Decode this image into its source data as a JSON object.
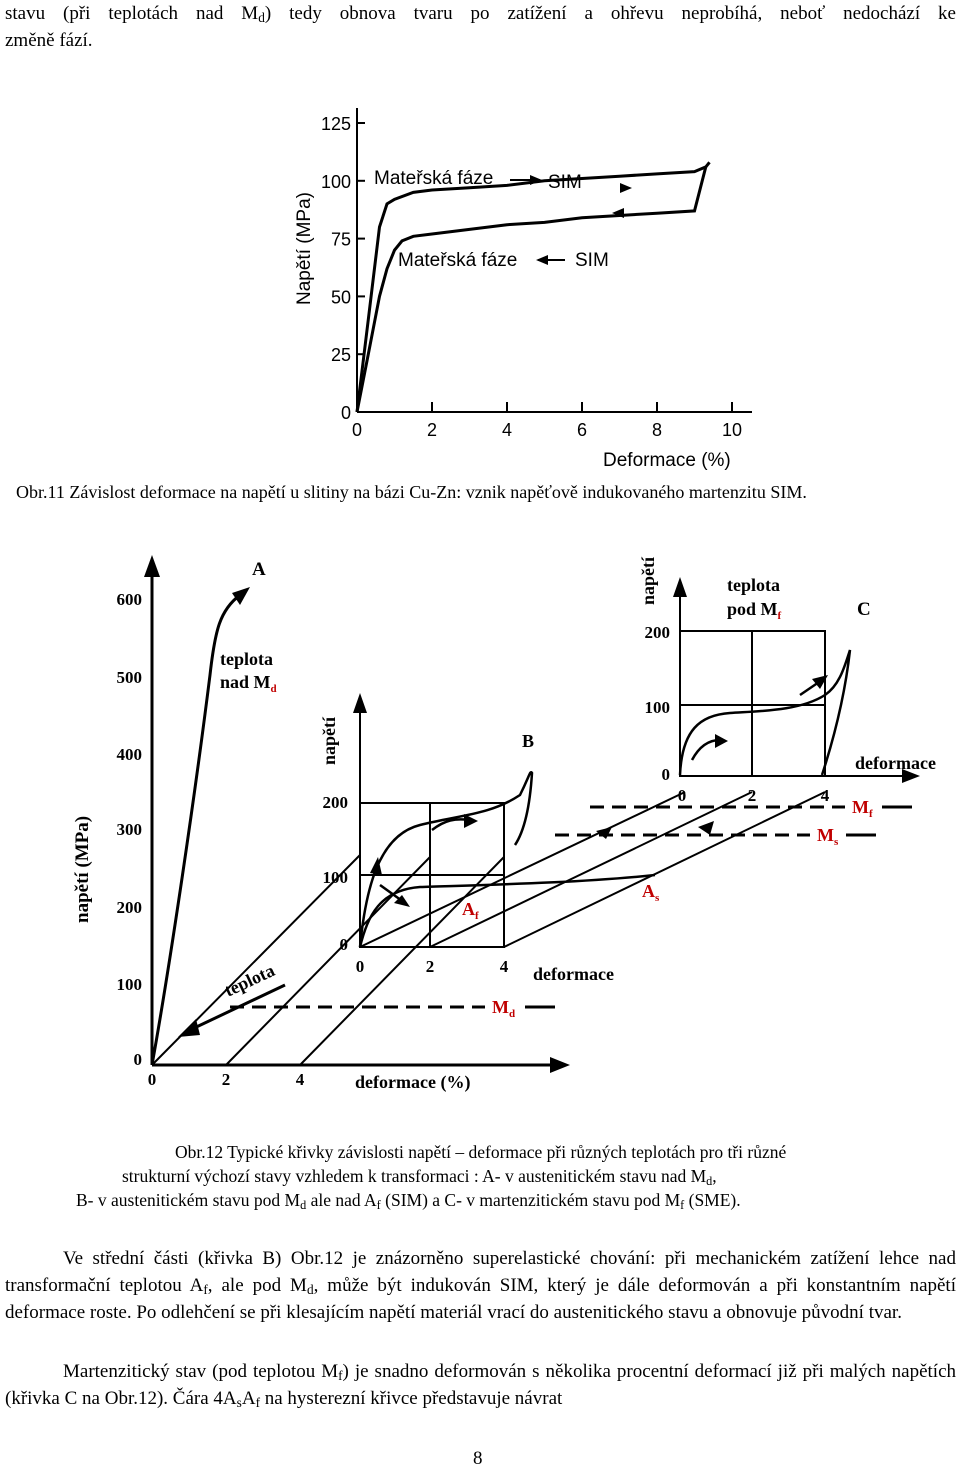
{
  "top_para": {
    "line1_a": "stavu (při teplotách nad M",
    "line1_sub": "d",
    "line1_b": ") tedy obnova tvaru po zatížení a ohřevu neprobíhá, neboť nedochází ke",
    "line2": "změně fází."
  },
  "fig11": {
    "ylabel": "Napětí (MPa)",
    "xlabel": "Deformace (%)",
    "upper_label": "Mateřská fáze",
    "upper_right": "SIM",
    "lower_label": "Mateřská fáze",
    "lower_right": "SIM",
    "caption": "Obr.11 Závislost deformace na napětí u slitiny na bázi Cu-Zn: vznik napěťově indukovaného martenzitu SIM."
  },
  "chart_data": [
    {
      "type": "line",
      "title": "",
      "xlabel": "Deformace (%)",
      "ylabel": "Napětí (MPa)",
      "xlim": [
        0,
        10
      ],
      "ylim": [
        0,
        125
      ],
      "x_ticks": [
        "0",
        "2",
        "4",
        "6",
        "8",
        "10"
      ],
      "y_ticks": [
        "0",
        "25",
        "50",
        "75",
        "100",
        "125"
      ],
      "series": [
        {
          "name": "Mateřská fáze → SIM",
          "x": [
            0,
            0.3,
            0.6,
            0.8,
            1.0,
            1.5,
            2,
            3,
            4,
            5,
            6,
            7,
            8,
            9,
            9.3,
            9.4
          ],
          "y": [
            0,
            40,
            80,
            90,
            92,
            95,
            96,
            97,
            98,
            100,
            101,
            102,
            103,
            104,
            106,
            108
          ]
        },
        {
          "name": "Mateřská fáze ← SIM",
          "x": [
            9.3,
            9.0,
            8.0,
            7.0,
            6.0,
            5.0,
            4.0,
            3.0,
            2.0,
            1.5,
            1.2,
            1.0,
            0.8,
            0.6,
            0.3,
            0
          ],
          "y": [
            106,
            87,
            86,
            85,
            84,
            82,
            81,
            79,
            77,
            76,
            74,
            70,
            62,
            50,
            25,
            0
          ]
        }
      ]
    }
  ],
  "fig12": {
    "A": "A",
    "B": "B",
    "C": "C",
    "y_main": "napětí (MPa)",
    "y_ticks": [
      "600",
      "500",
      "400",
      "300",
      "200",
      "100",
      "0"
    ],
    "x_main": "deformace (%)",
    "x_ticks": [
      "0",
      "2",
      "4"
    ],
    "teplota": "teplota",
    "nad": "teplota",
    "nad2": "nad M",
    "nad2_sub": "d",
    "B_y": "napětí",
    "B_y_ticks": [
      "200",
      "100",
      "0"
    ],
    "B_x_ticks": [
      "0",
      "2",
      "4"
    ],
    "B_x": "deformace",
    "Af": "A",
    "Af_sub": "f",
    "As": "A",
    "As_sub": "s",
    "Md": "M",
    "Md_sub": "d",
    "C_y": "napětí",
    "C_y_ticks": [
      "200",
      "100",
      "0"
    ],
    "C_x_ticks": [
      "0",
      "2",
      "4"
    ],
    "C_x": "deformace",
    "pod1": "teplota",
    "pod2": "pod M",
    "pod2_sub": "f",
    "Mf": "M",
    "Mf_sub": "f",
    "Ms": "M",
    "Ms_sub": "s"
  },
  "caption12": {
    "l1": "Obr.12 Typické křivky  závislosti napětí – deformace při různých teplotách pro tři různé",
    "l2a": "strukturní výchozí stavy vzhledem k transformaci : A- v austenitickém stavu nad M",
    "l2sub": "d",
    "l2b": ",",
    "l3a": "B- v austenitickém stavu pod M",
    "l3sub1": "d",
    "l3b": " ale nad A",
    "l3sub2": "f",
    "l3c": " (SIM)  a  C- v martenzitickém stavu pod M",
    "l3sub3": "f",
    "l3d": " (SME)."
  },
  "para1": {
    "t1": "Ve střední části (křivka B) Obr.12 je znázorněno superelastické chování: při mechanickém zatížení lehce nad transformační teplotou A",
    "s1": "f",
    "t2": ", ale pod M",
    "s2": "d",
    "t3": ", může být indukován SIM, který je dále deformován a při konstantním napětí deformace roste. Po odlehčení se při klesajícím napětí materiál vrací do austenitického stavu a obnovuje původní tvar."
  },
  "para2": {
    "t1": "Martenzitický stav (pod teplotou M",
    "s1": "f",
    "t2": ") je snadno deformován s několika procentní deformací již při malých napětích (křivka C na Obr.12). Čára 4A",
    "s2": "s",
    "t3": "A",
    "s3": "f",
    "t4": " na hysterezní křivce představuje návrat"
  },
  "page_number": "8"
}
